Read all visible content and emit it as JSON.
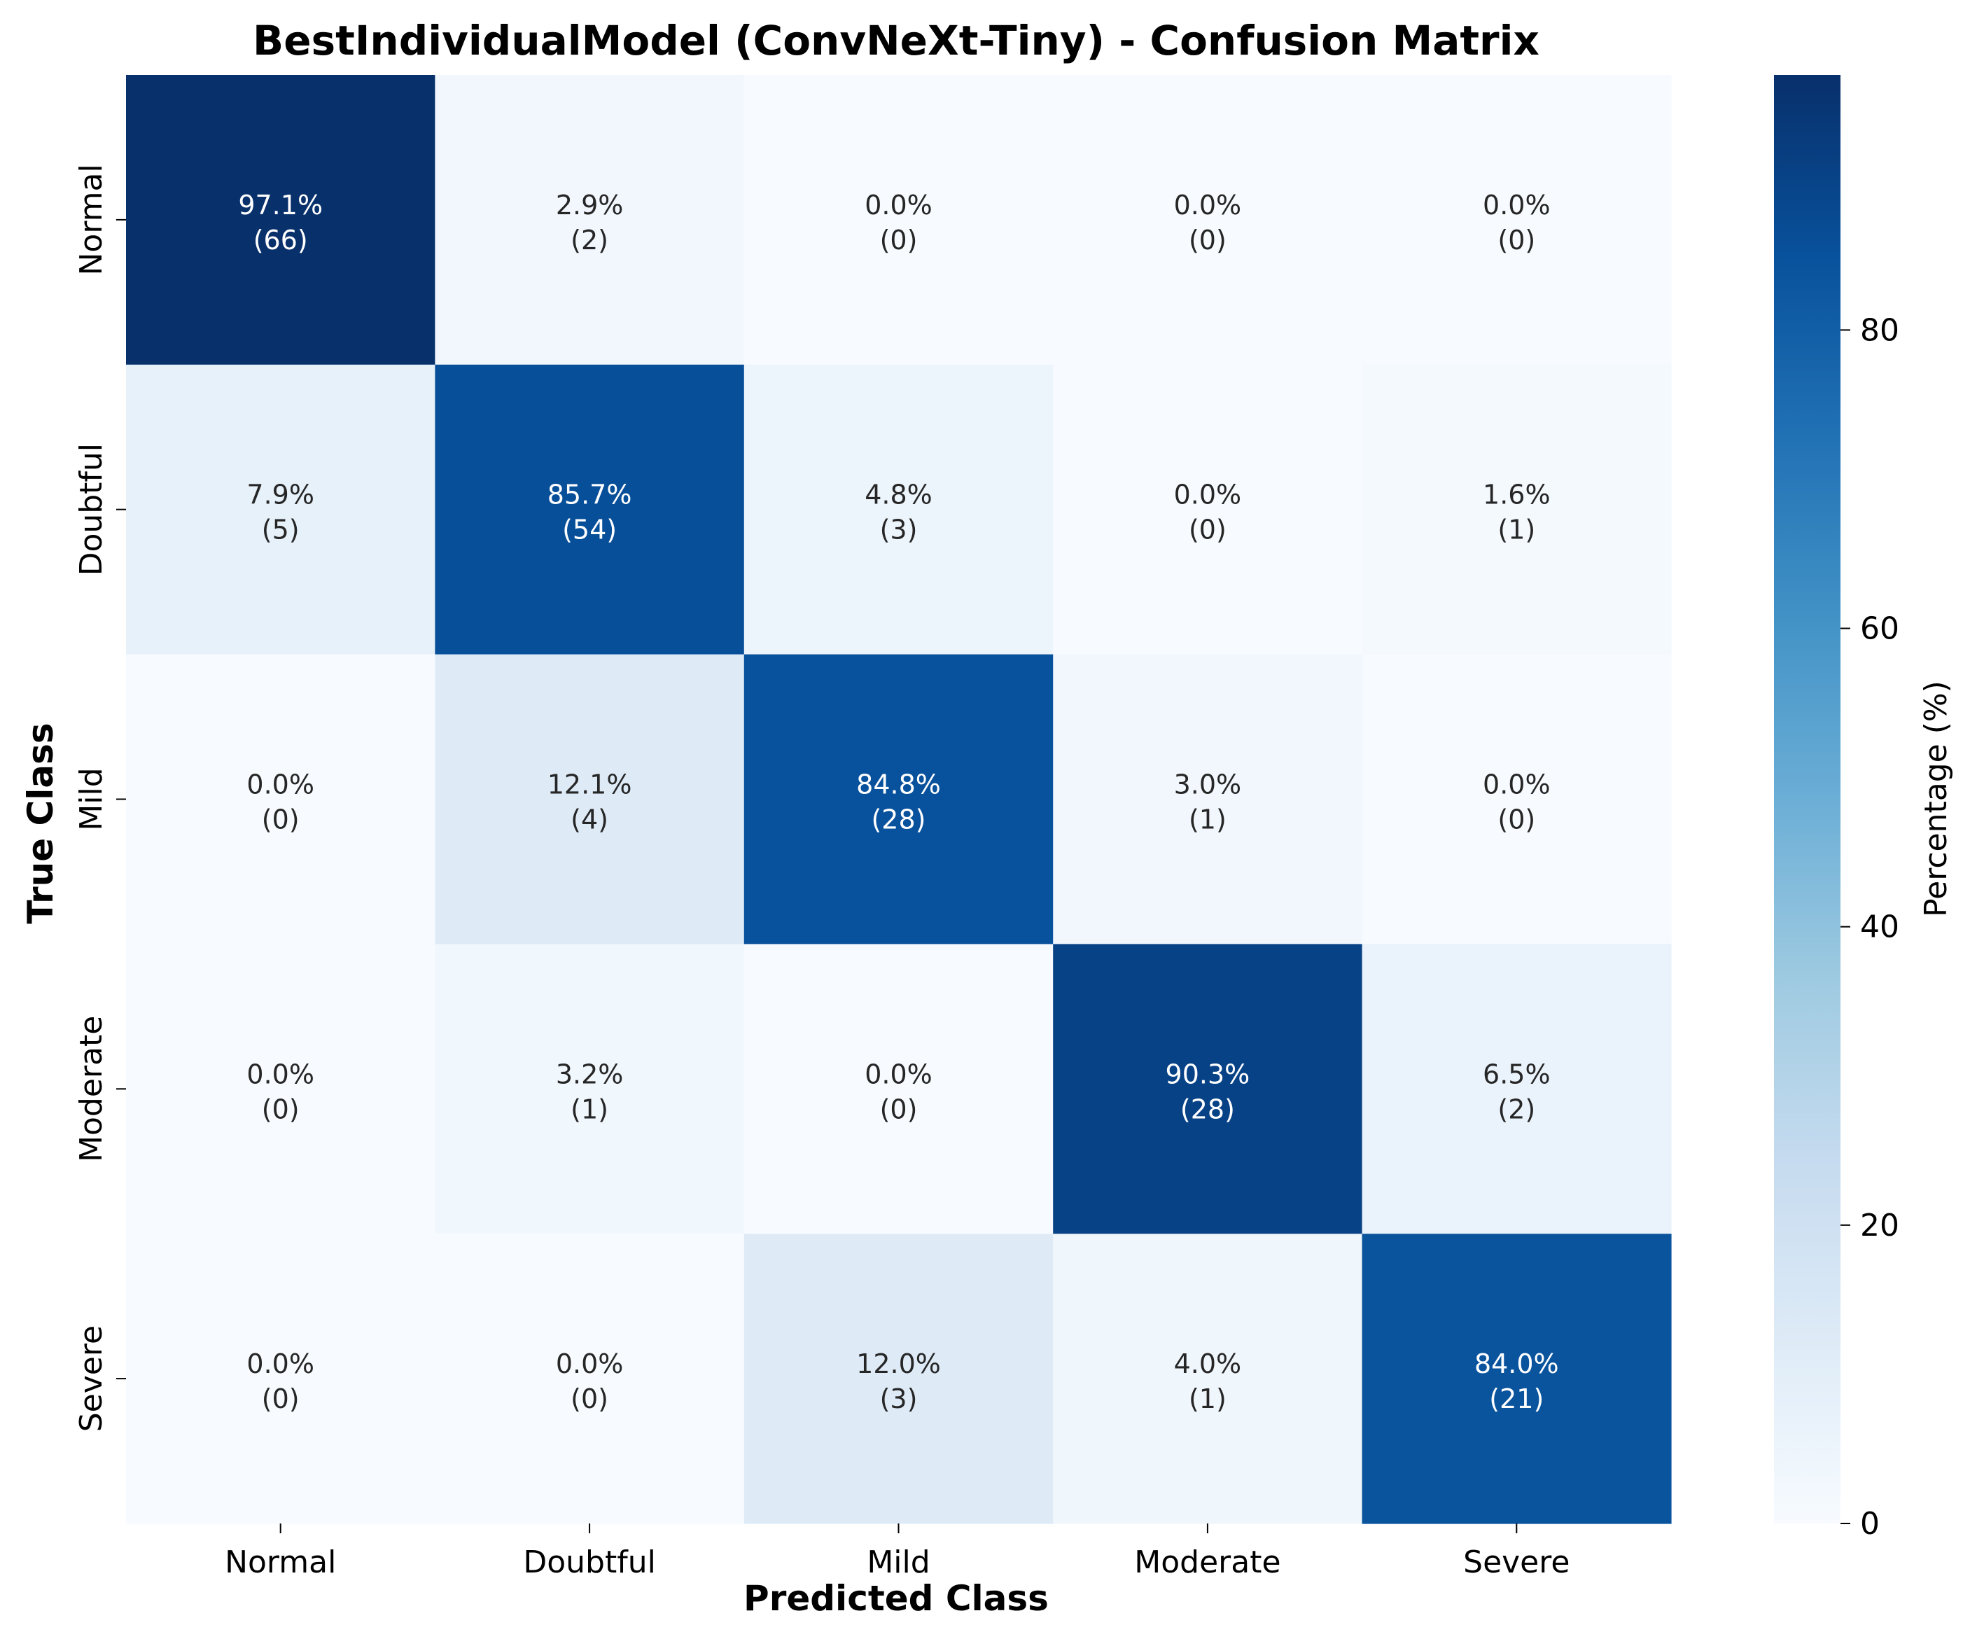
{
  "chart_data": {
    "type": "heatmap",
    "title": "BestIndividualModel (ConvNeXt-Tiny) - Confusion Matrix",
    "xlabel": "Predicted Class",
    "ylabel": "True Class",
    "x_categories": [
      "Normal",
      "Doubtful",
      "Mild",
      "Moderate",
      "Severe"
    ],
    "y_categories": [
      "Normal",
      "Doubtful",
      "Mild",
      "Moderate",
      "Severe"
    ],
    "percentages": [
      [
        97.1,
        2.9,
        0.0,
        0.0,
        0.0
      ],
      [
        7.9,
        85.7,
        4.8,
        0.0,
        1.6
      ],
      [
        0.0,
        12.1,
        84.8,
        3.0,
        0.0
      ],
      [
        0.0,
        3.2,
        0.0,
        90.3,
        6.5
      ],
      [
        0.0,
        0.0,
        12.0,
        4.0,
        84.0
      ]
    ],
    "counts": [
      [
        66,
        2,
        0,
        0,
        0
      ],
      [
        5,
        54,
        3,
        0,
        1
      ],
      [
        0,
        4,
        28,
        1,
        0
      ],
      [
        0,
        1,
        0,
        28,
        2
      ],
      [
        0,
        0,
        3,
        1,
        21
      ]
    ],
    "colormap": "Blues",
    "colorbar": {
      "label": "Percentage (%)",
      "range": [
        0,
        97.1
      ],
      "ticks": [
        0,
        20,
        40,
        60,
        80
      ]
    }
  }
}
